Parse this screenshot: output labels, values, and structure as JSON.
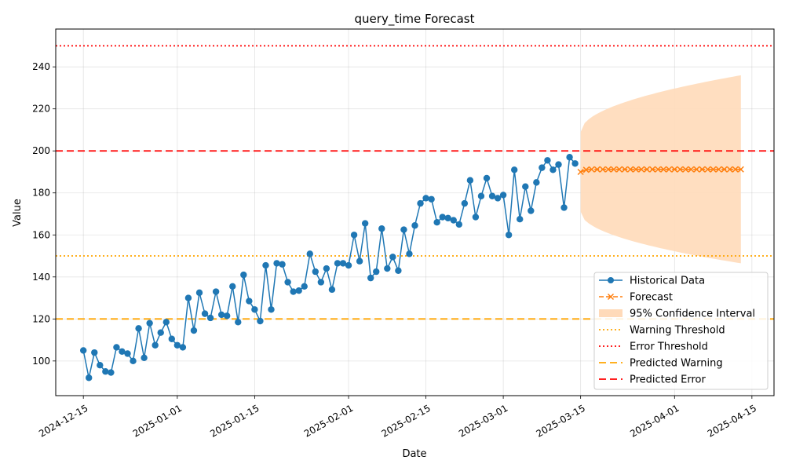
{
  "chart_data": {
    "type": "line",
    "title": "query_time Forecast",
    "xlabel": "Date",
    "ylabel": "Value",
    "x_axis_type": "date",
    "xlim": [
      "2024-12-10",
      "2025-04-19"
    ],
    "ylim": [
      83.5,
      258
    ],
    "grid": true,
    "legend_position": "lower-right",
    "x_ticks": [
      "2024-12-15",
      "2025-01-01",
      "2025-01-15",
      "2025-02-01",
      "2025-02-15",
      "2025-03-01",
      "2025-03-15",
      "2025-04-01",
      "2025-04-15"
    ],
    "y_ticks": [
      100,
      120,
      140,
      160,
      180,
      200,
      220,
      240
    ],
    "historical": {
      "name": "Historical Data",
      "color": "#1f77b4",
      "start_date": "2024-12-15",
      "step_days": 1,
      "values": [
        105.0,
        92.0,
        104.0,
        98.0,
        95.0,
        94.5,
        106.5,
        104.5,
        103.5,
        100.0,
        115.5,
        101.5,
        118.0,
        107.5,
        113.5,
        118.5,
        110.5,
        107.5,
        106.5,
        130.0,
        114.5,
        132.5,
        122.5,
        120.5,
        133.0,
        122.0,
        121.5,
        135.5,
        118.5,
        141.0,
        128.5,
        124.5,
        119.0,
        145.5,
        124.5,
        146.5,
        146.0,
        137.5,
        133.0,
        133.5,
        135.5,
        151.0,
        142.5,
        137.5,
        144.0,
        134.0,
        146.5,
        146.5,
        145.5,
        160.0,
        147.5,
        165.5,
        139.5,
        142.5,
        163.0,
        144.0,
        149.5,
        143.0,
        162.5,
        151.0,
        164.5,
        175.0,
        177.5,
        177.0,
        166.0,
        168.5,
        168.0,
        167.0,
        165.0,
        175.0,
        186.0,
        168.5,
        178.5,
        187.0,
        178.5,
        177.5,
        179.0,
        160.0,
        191.0,
        167.5,
        183.0,
        171.5,
        185.0,
        192.0,
        195.5,
        191.0,
        193.5,
        173.0,
        197.0,
        194.0
      ]
    },
    "forecast": {
      "name": "Forecast",
      "color": "#ff7f0e",
      "start_date": "2025-03-15",
      "step_days": 1,
      "values": [
        190.0,
        191.0,
        191.2,
        191.2,
        191.2,
        191.2,
        191.2,
        191.2,
        191.2,
        191.2,
        191.2,
        191.2,
        191.2,
        191.2,
        191.2,
        191.2,
        191.2,
        191.2,
        191.2,
        191.2,
        191.2,
        191.2,
        191.2,
        191.2,
        191.2,
        191.2,
        191.2,
        191.2,
        191.2,
        191.2
      ]
    },
    "confidence_interval": {
      "name": "95% Confidence Interval",
      "color": "#ffdab9",
      "start_date": "2025-03-15",
      "end_date": "2025-04-13",
      "upper_start": 209,
      "upper_end": 236,
      "lower_start": 171,
      "lower_end": 146.5
    },
    "thresholds": [
      {
        "name": "Warning Threshold",
        "value": 150,
        "color": "#ffa500",
        "style": "dotted"
      },
      {
        "name": "Error Threshold",
        "value": 250,
        "color": "#ff0000",
        "style": "dotted"
      },
      {
        "name": "Predicted Warning",
        "value": 120,
        "color": "#ffa500",
        "style": "dashed"
      },
      {
        "name": "Predicted Error",
        "value": 200,
        "color": "#ff0000",
        "style": "dashed"
      }
    ]
  }
}
